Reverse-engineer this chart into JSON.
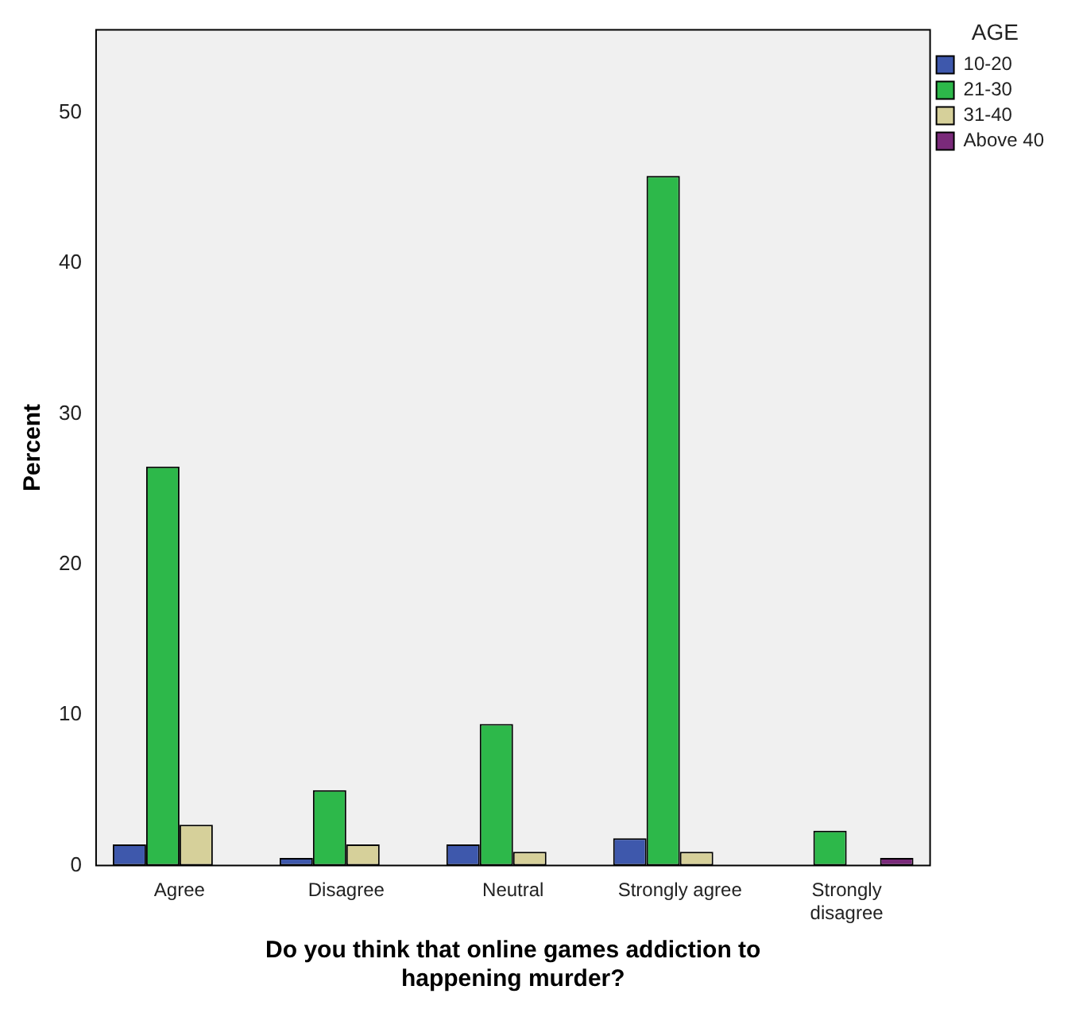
{
  "chart_data": {
    "type": "bar",
    "xlabel": "Do you think that online games addiction to happening murder?",
    "ylabel": "Percent",
    "legend_title": "AGE",
    "categories": [
      "Agree",
      "Disagree",
      "Neutral",
      "Strongly agree",
      "Strongly disagree"
    ],
    "series": [
      {
        "name": "10-20",
        "color": "#3e58ac",
        "values": [
          1.4,
          0.5,
          1.4,
          1.8,
          0
        ]
      },
      {
        "name": "21-30",
        "color": "#2db84a",
        "values": [
          26.5,
          5.0,
          9.4,
          45.8,
          2.3
        ]
      },
      {
        "name": "31-40",
        "color": "#d6d09a",
        "values": [
          2.7,
          1.4,
          0.9,
          0.9,
          0
        ]
      },
      {
        "name": "Above 40",
        "color": "#7a2a7a",
        "values": [
          0,
          0,
          0,
          0,
          0.5
        ]
      }
    ],
    "ylim": [
      0,
      55.5
    ],
    "yticks": [
      0,
      10,
      20,
      30,
      40,
      50
    ],
    "grid": false,
    "legend": "top right"
  }
}
